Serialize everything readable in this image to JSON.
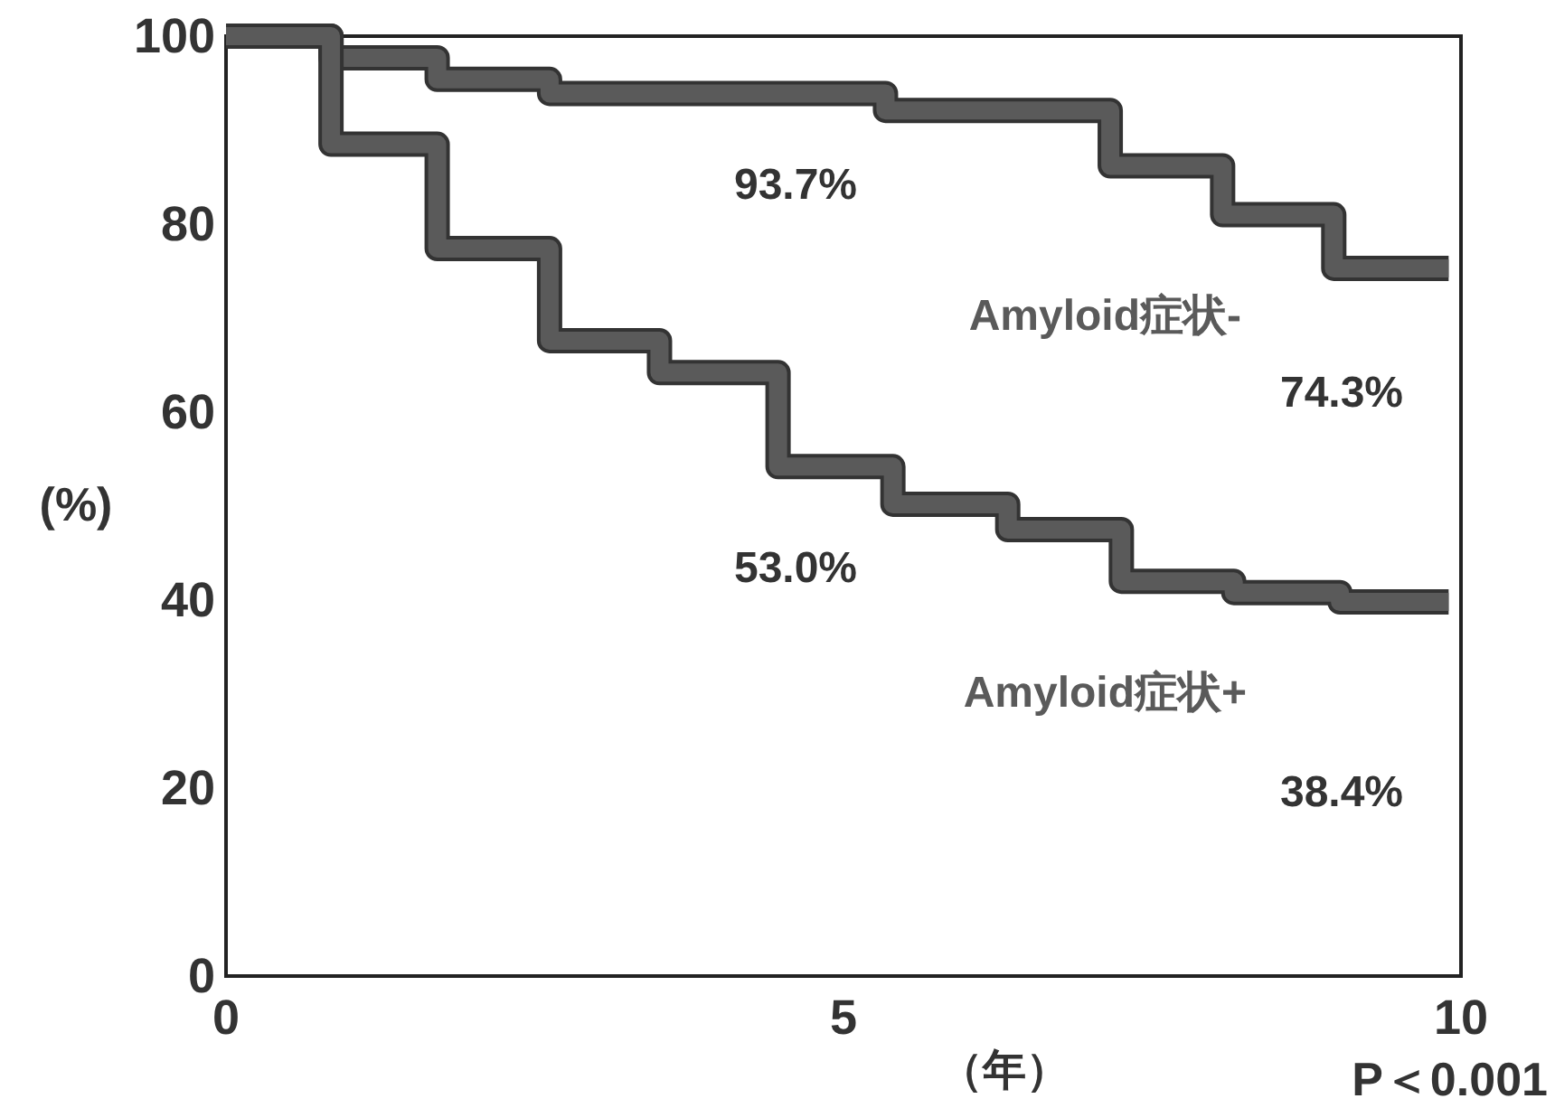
{
  "chart_data": {
    "type": "step",
    "xlabel": "（年）",
    "ylabel": "(%)",
    "xlim": [
      0,
      10
    ],
    "ylim": [
      0,
      100
    ],
    "xticks": [
      0,
      5,
      10
    ],
    "yticks": [
      0,
      20,
      40,
      60,
      80,
      100
    ],
    "grid": false,
    "series": [
      {
        "name": "Amyloid症状-",
        "color": "#5a5a5a",
        "x": [
          0,
          0.85,
          1.71,
          2.62,
          5.34,
          7.16,
          8.07,
          8.97,
          9.9
        ],
        "values": [
          100,
          97.7,
          95.4,
          93.9,
          92.1,
          86.2,
          81.0,
          75.3,
          75.3
        ]
      },
      {
        "name": "Amyloid症状+",
        "color": "#5a5a5a",
        "x": [
          0,
          0.85,
          1.71,
          2.62,
          3.51,
          4.47,
          5.4,
          6.33,
          7.25,
          8.16,
          9.02,
          9.9
        ],
        "values": [
          100,
          88.5,
          77.4,
          67.6,
          64.2,
          54.2,
          50.2,
          47.5,
          42.0,
          40.8,
          39.8,
          39.8
        ]
      }
    ],
    "annotations": [
      "93.7%",
      "74.3%",
      "53.0%",
      "38.4%",
      "P＜0.001"
    ]
  }
}
